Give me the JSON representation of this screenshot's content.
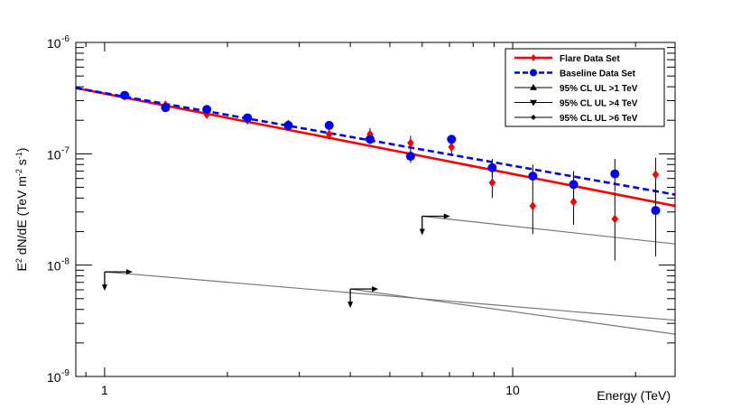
{
  "chart_data": {
    "type": "scatter",
    "title": "",
    "xlabel": "Energy (TeV)",
    "ylabel": {
      "parts": [
        {
          "t": "E"
        },
        {
          "t": "2",
          "sup": true
        },
        {
          "t": " dN/dE (TeV m"
        },
        {
          "t": "-2",
          "sup": true
        },
        {
          "t": " s"
        },
        {
          "t": "-1",
          "sup": true
        },
        {
          "t": ")"
        }
      ]
    },
    "x_scale": "log",
    "y_scale": "log",
    "xlim": [
      0.85,
      25
    ],
    "ylim": [
      1e-09,
      1e-06
    ],
    "x_tick_labels": [
      {
        "value": 1,
        "label": "1"
      },
      {
        "value": 10,
        "label": "10"
      }
    ],
    "y_tick_labels": [
      {
        "value": 1e-09,
        "base": "10",
        "exp": "-9"
      },
      {
        "value": 1e-08,
        "base": "10",
        "exp": "-8"
      },
      {
        "value": 1e-07,
        "base": "10",
        "exp": "-7"
      },
      {
        "value": 1e-06,
        "base": "10",
        "exp": "-6"
      }
    ],
    "grid": false,
    "legend_position": "top-right",
    "fits": [
      {
        "name": "Flare Data Set",
        "color": "#ff0000",
        "dash": "solid",
        "x": [
          0.85,
          25
        ],
        "y": [
          3.9e-07,
          3.4e-08
        ]
      },
      {
        "name": "Baseline Data Set",
        "color": "#0000ff",
        "dash": "dashed",
        "x": [
          0.85,
          25
        ],
        "y": [
          3.9e-07,
          4.3e-08
        ]
      }
    ],
    "series": [
      {
        "name": "Flare Data Set",
        "marker": "diamond",
        "color": "#ff0000",
        "points": [
          {
            "x": 1.12,
            "y": 3.3e-07,
            "lo": 3.15e-07,
            "hi": 3.45e-07
          },
          {
            "x": 1.41,
            "y": 2.75e-07,
            "lo": 2.6e-07,
            "hi": 2.9e-07
          },
          {
            "x": 1.78,
            "y": 2.25e-07,
            "lo": 2.12e-07,
            "hi": 2.38e-07
          },
          {
            "x": 2.24,
            "y": 2e-07,
            "lo": 1.88e-07,
            "hi": 2.12e-07
          },
          {
            "x": 2.82,
            "y": 1.85e-07,
            "lo": 1.7e-07,
            "hi": 2e-07
          },
          {
            "x": 3.55,
            "y": 1.5e-07,
            "lo": 1.35e-07,
            "hi": 1.65e-07
          },
          {
            "x": 4.47,
            "y": 1.5e-07,
            "lo": 1.32e-07,
            "hi": 1.7e-07
          },
          {
            "x": 5.62,
            "y": 1.25e-07,
            "lo": 1.05e-07,
            "hi": 1.45e-07
          },
          {
            "x": 7.08,
            "y": 1.15e-07,
            "lo": 9.5e-08,
            "hi": 1.35e-07
          },
          {
            "x": 8.91,
            "y": 5.5e-08,
            "lo": 4e-08,
            "hi": 7e-08
          },
          {
            "x": 11.2,
            "y": 3.4e-08,
            "lo": 1.9e-08,
            "hi": 5e-08
          },
          {
            "x": 14.1,
            "y": 3.7e-08,
            "lo": 2.3e-08,
            "hi": 5.5e-08
          },
          {
            "x": 17.8,
            "y": 2.6e-08,
            "lo": 1.1e-08,
            "hi": 4.5e-08
          },
          {
            "x": 22.4,
            "y": 6.5e-08,
            "lo": 3.8e-08,
            "hi": 9.2e-08
          }
        ]
      },
      {
        "name": "Baseline Data Set",
        "marker": "circle",
        "color": "#0000ff",
        "points": [
          {
            "x": 1.12,
            "y": 3.35e-07,
            "lo": 3.25e-07,
            "hi": 3.45e-07
          },
          {
            "x": 1.41,
            "y": 2.6e-07,
            "lo": 2.5e-07,
            "hi": 2.7e-07
          },
          {
            "x": 1.78,
            "y": 2.5e-07,
            "lo": 2.4e-07,
            "hi": 2.6e-07
          },
          {
            "x": 2.24,
            "y": 2.1e-07,
            "lo": 2e-07,
            "hi": 2.2e-07
          },
          {
            "x": 2.82,
            "y": 1.8e-07,
            "lo": 1.7e-07,
            "hi": 1.9e-07
          },
          {
            "x": 3.55,
            "y": 1.8e-07,
            "lo": 1.65e-07,
            "hi": 1.95e-07
          },
          {
            "x": 4.47,
            "y": 1.35e-07,
            "lo": 1.22e-07,
            "hi": 1.48e-07
          },
          {
            "x": 5.62,
            "y": 9.5e-08,
            "lo": 8.3e-08,
            "hi": 1.07e-07
          },
          {
            "x": 7.08,
            "y": 1.35e-07,
            "lo": 1.22e-07,
            "hi": 1.48e-07
          },
          {
            "x": 8.91,
            "y": 7.5e-08,
            "lo": 6.2e-08,
            "hi": 9e-08
          },
          {
            "x": 11.2,
            "y": 6.3e-08,
            "lo": 4.9e-08,
            "hi": 8e-08
          },
          {
            "x": 14.1,
            "y": 5.3e-08,
            "lo": 3.8e-08,
            "hi": 7e-08
          },
          {
            "x": 17.8,
            "y": 6.6e-08,
            "lo": 4.6e-08,
            "hi": 9e-08
          },
          {
            "x": 22.4,
            "y": 3.1e-08,
            "lo": 1.2e-08,
            "hi": 5.5e-08
          }
        ]
      }
    ],
    "upper_limits": [
      {
        "name": "95% CL UL >1 TeV",
        "marker": "triangle-up",
        "color": "#000000",
        "line_color": "#777777",
        "anchor": [
          1.0,
          8.7e-09
        ],
        "x": [
          1.0,
          25
        ],
        "y": [
          8.7e-09,
          3.2e-09
        ]
      },
      {
        "name": "95% CL UL >4 TeV",
        "marker": "triangle-down",
        "color": "#000000",
        "line_color": "#777777",
        "anchor": [
          4.0,
          6.1e-09
        ],
        "x": [
          4.0,
          25
        ],
        "y": [
          6.1e-09,
          2.4e-09
        ]
      },
      {
        "name": "95% CL UL >6 TeV",
        "marker": "diamond-small",
        "color": "#000000",
        "line_color": "#777777",
        "anchor": [
          6.0,
          2.75e-08
        ],
        "x": [
          6.0,
          25
        ],
        "y": [
          2.75e-08,
          1.55e-08
        ]
      }
    ],
    "legend": [
      {
        "label": "Flare Data Set",
        "style": "line-marker",
        "color": "#ff0000",
        "marker": "diamond",
        "dash": "solid"
      },
      {
        "label": "Baseline Data Set",
        "style": "line-marker",
        "color": "#0000ff",
        "marker": "circle",
        "dash": "dashed"
      },
      {
        "label": "95% CL UL >1 TeV",
        "style": "line-marker",
        "color": "#000000",
        "marker": "triangle-up",
        "dash": "solid"
      },
      {
        "label": "95% CL UL >4 TeV",
        "style": "line-marker",
        "color": "#000000",
        "marker": "triangle-down",
        "dash": "solid"
      },
      {
        "label": "95% CL UL >6 TeV",
        "style": "line-marker",
        "color": "#000000",
        "marker": "diamond-small",
        "dash": "solid"
      }
    ]
  }
}
